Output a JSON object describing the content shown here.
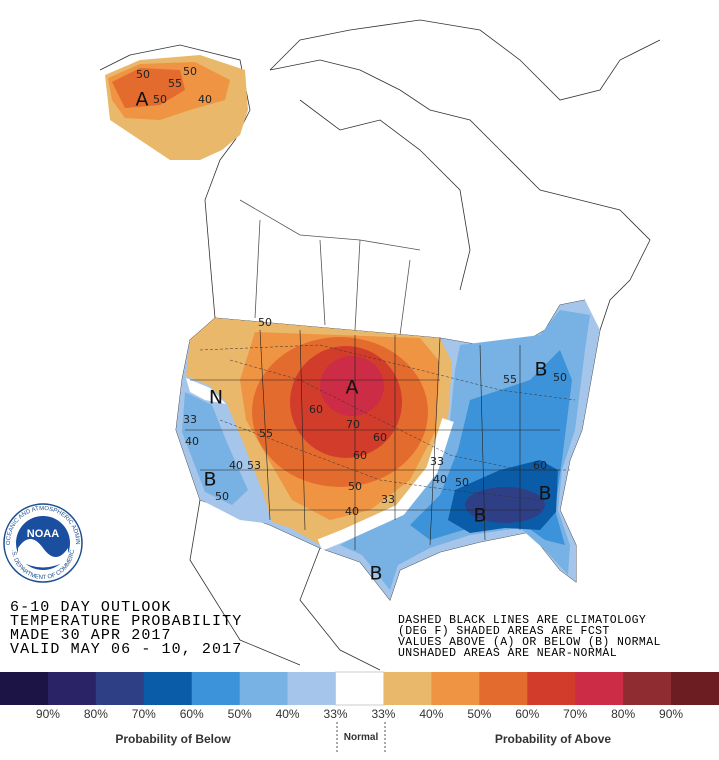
{
  "header": {
    "lines": [
      "6-10 DAY OUTLOOK",
      "TEMPERATURE PROBABILITY",
      "MADE  30 APR 2017",
      "VALID  MAY 06 - 10, 2017"
    ]
  },
  "notes": {
    "lines": [
      "DASHED BLACK LINES ARE CLIMATOLOGY",
      "(DEG F) SHADED AREAS ARE FCST",
      "VALUES ABOVE (A) OR BELOW (B) NORMAL",
      "UNSHADED AREAS ARE NEAR-NORMAL"
    ]
  },
  "logo": {
    "name": "NOAA",
    "ring_top": "NATIONAL OCEANIC AND ATMOSPHERIC ADMINISTRATION",
    "ring_bottom": "U.S. DEPARTMENT OF COMMERCE"
  },
  "legend": {
    "colors": [
      "#1d1446",
      "#2a2467",
      "#2f3f86",
      "#0b5ca8",
      "#3d93da",
      "#78b1e3",
      "#a5c6ea",
      "#ffffff",
      "#e9b86a",
      "#ef9442",
      "#e36b2e",
      "#d23d2b",
      "#cc2c45",
      "#8e2c32",
      "#6b1d22"
    ],
    "labels": [
      "90%",
      "80%",
      "70%",
      "60%",
      "50%",
      "40%",
      "33%",
      "33%",
      "40%",
      "50%",
      "60%",
      "70%",
      "80%",
      "90%"
    ],
    "below": "Probability of Below",
    "normal": "Normal",
    "above": "Probability of Above"
  },
  "map_labels": [
    "A",
    "50",
    "55",
    "50",
    "40",
    "50",
    "50",
    "A",
    "60",
    "55",
    "70",
    "60",
    "60",
    "N",
    "33",
    "40",
    "40",
    "53",
    "B",
    "50",
    "33",
    "40",
    "50",
    "50",
    "40",
    "33",
    "B",
    "50",
    "60",
    "B",
    "B",
    "B",
    "55"
  ]
}
